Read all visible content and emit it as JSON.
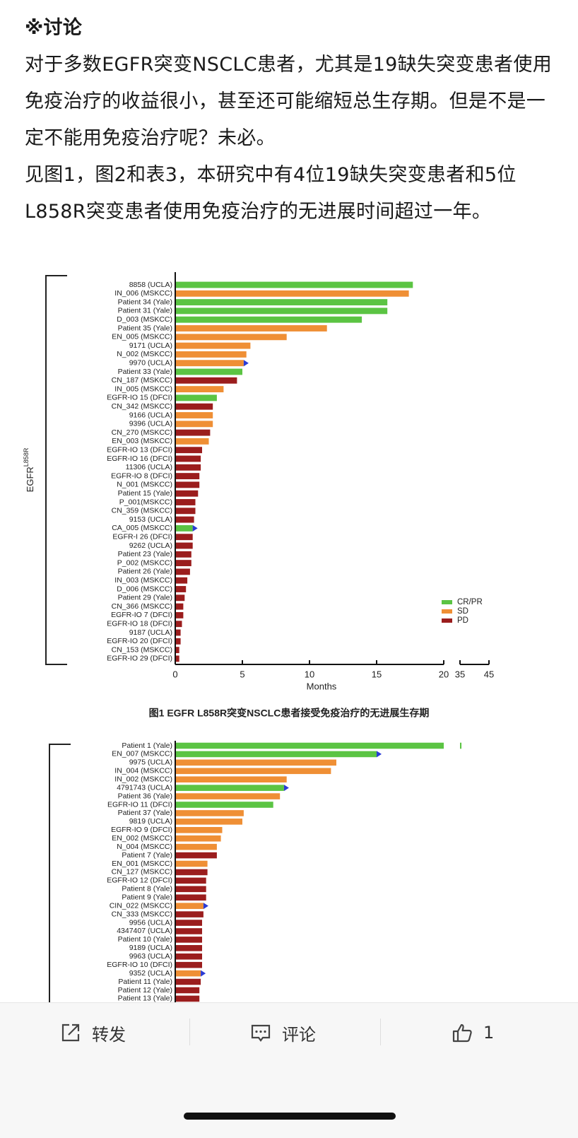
{
  "post": {
    "heading": "※讨论",
    "paragraphs": [
      "对于多数EGFR突变NSCLC患者，尤其是19缺失突变患者使用免疫治疗的收益很小，甚至还可能缩短总生存期。但是不是一定不能用免疫治疗呢？未必。",
      "见图1，图2和表3，本研究中有4位19缺失突变患者和5位L858R突变患者使用免疫治疗的无进展时间超过一年。"
    ]
  },
  "chart_data": [
    {
      "type": "bar",
      "orientation": "horizontal",
      "y_label": "EGFR",
      "y_label_sup": "L858R",
      "x_label": "Months",
      "caption": "图1 EGFR L858R突变NSCLC患者接受免疫治疗的无进展生存期",
      "categories": [
        "8858 (UCLA)",
        "IN_006 (MSKCC)",
        "Patient 34 (Yale)",
        "Patient 31 (Yale)",
        "D_003 (MSKCC)",
        "Patient 35 (Yale)",
        "EN_005 (MSKCC)",
        "9171 (UCLA)",
        "N_002 (MSKCC)",
        "9970 (UCLA)",
        "Patient 33 (Yale)",
        "CN_187 (MSKCC)",
        "IN_005 (MSKCC)",
        "EGFR-IO 15 (DFCI)",
        "CN_342 (MSKCC)",
        "9166 (UCLA)",
        "9396 (UCLA)",
        "CN_270 (MSKCC)",
        "EN_003 (MSKCC)",
        "EGFR-IO 13 (DFCI)",
        "EGFR-IO 16 (DFCI)",
        "11306 (UCLA)",
        "EGFR-IO 8 (DFCI)",
        "N_001 (MSKCC)",
        "Patient 15 (Yale)",
        "P_001(MSKCC)",
        "CN_359 (MSKCC)",
        "9153 (UCLA)",
        "CA_005 (MSKCC)",
        "EGFR-I 26 (DFCI)",
        "9262 (UCLA)",
        "Patient 23 (Yale)",
        "P_002 (MSKCC)",
        "Patient 26 (Yale)",
        "IN_003 (MSKCC)",
        "D_006 (MSKCC)",
        "Patient 29 (Yale)",
        "CN_366 (MSKCC)",
        "EGFR-IO 7 (DFCI)",
        "EGFR-IO 18 (DFCI)",
        "9187 (UCLA)",
        "EGFR-IO 20 (DFCI)",
        "CN_153 (MSKCC)",
        "EGFR-IO 29 (DFCI)"
      ],
      "series": [
        {
          "name": "CR/PR",
          "color": "#5bc443",
          "values": [
            17.7,
            null,
            15.8,
            15.8,
            13.9,
            null,
            null,
            null,
            null,
            null,
            5.0,
            null,
            null,
            3.1,
            null,
            null,
            null,
            null,
            null,
            null,
            null,
            null,
            null,
            null,
            null,
            null,
            null,
            null,
            1.3,
            null,
            null,
            null,
            null,
            null,
            null,
            null,
            null,
            null,
            null,
            null,
            null,
            null,
            null,
            null
          ]
        },
        {
          "name": "SD",
          "color": "#ef8f35",
          "values": [
            null,
            17.4,
            null,
            null,
            null,
            11.3,
            8.3,
            5.6,
            5.3,
            5.1,
            null,
            null,
            3.6,
            null,
            null,
            2.8,
            2.8,
            null,
            2.5,
            null,
            null,
            null,
            null,
            null,
            null,
            null,
            null,
            null,
            null,
            null,
            null,
            null,
            null,
            null,
            null,
            null,
            null,
            null,
            null,
            null,
            null,
            null,
            null,
            null
          ]
        },
        {
          "name": "PD",
          "color": "#9b1d1d",
          "values": [
            null,
            null,
            null,
            null,
            null,
            null,
            null,
            null,
            null,
            null,
            null,
            4.6,
            null,
            null,
            2.8,
            null,
            null,
            2.6,
            null,
            2.0,
            1.9,
            1.9,
            1.8,
            1.8,
            1.7,
            1.5,
            1.5,
            1.4,
            null,
            1.3,
            1.3,
            1.2,
            1.2,
            1.1,
            0.9,
            0.8,
            0.7,
            0.6,
            0.6,
            0.5,
            0.4,
            0.4,
            0.3,
            0.3
          ]
        }
      ],
      "ongoing": [
        9,
        28
      ],
      "arrow_color": "#2a3bd6",
      "xlim": [
        0,
        45
      ],
      "xbreak": [
        20,
        35
      ],
      "xticks": [
        0,
        5,
        10,
        15,
        20,
        35,
        45
      ],
      "legend": "lower right"
    },
    {
      "type": "bar",
      "orientation": "horizontal",
      "categories": [
        "Patient 1 (Yale)",
        "EN_007 (MSKCC)",
        "9975 (UCLA)",
        "IN_004 (MSKCC)",
        "IN_002 (MSKCC)",
        "4791743 (UCLA)",
        "Patient 36 (Yale)",
        "EGFR-IO 11 (DFCI)",
        "Patient 37 (Yale)",
        "9819 (UCLA)",
        "EGFR-IO 9 (DFCI)",
        "EN_002 (MSKCC)",
        "N_004 (MSKCC)",
        "Patient 7 (Yale)",
        "EN_001 (MSKCC)",
        "CN_127 (MSKCC)",
        "EGFR-IO 12 (DFCI)",
        "Patient 8 (Yale)",
        "Patient 9 (Yale)",
        "CIN_022 (MSKCC)",
        "CN_333 (MSKCC)",
        "9956 (UCLA)",
        "4347407 (UCLA)",
        "Patient 10 (Yale)",
        "9189 (UCLA)",
        "9963 (UCLA)",
        "EGFR-IO 10 (DFCI)",
        "9352 (UCLA)",
        "Patient 11 (Yale)",
        "Patient 12 (Yale)",
        "Patient 13 (Yale)"
      ],
      "values": [
        35.5,
        15.0,
        12.0,
        11.6,
        8.3,
        8.1,
        7.8,
        7.3,
        5.1,
        5.0,
        3.5,
        3.4,
        3.1,
        3.1,
        2.4,
        2.4,
        2.3,
        2.3,
        2.3,
        2.1,
        2.1,
        2.0,
        2.0,
        2.0,
        2.0,
        2.0,
        2.0,
        1.9,
        1.9,
        1.8,
        1.8
      ],
      "colors": [
        "#5bc443",
        "#5bc443",
        "#ef8f35",
        "#ef8f35",
        "#ef8f35",
        "#5bc443",
        "#ef8f35",
        "#5bc443",
        "#ef8f35",
        "#ef8f35",
        "#ef8f35",
        "#ef8f35",
        "#ef8f35",
        "#9b1d1d",
        "#ef8f35",
        "#9b1d1d",
        "#9b1d1d",
        "#9b1d1d",
        "#9b1d1d",
        "#ef8f35",
        "#9b1d1d",
        "#9b1d1d",
        "#9b1d1d",
        "#9b1d1d",
        "#9b1d1d",
        "#9b1d1d",
        "#9b1d1d",
        "#ef8f35",
        "#9b1d1d",
        "#9b1d1d",
        "#9b1d1d"
      ],
      "ongoing": [
        1,
        5,
        19,
        27
      ],
      "arrow_color": "#2a3bd6",
      "xlim": [
        0,
        45
      ],
      "xbreak": [
        20,
        35
      ]
    }
  ],
  "actions": {
    "share": "转发",
    "comment": "评论",
    "like_count": 1
  }
}
